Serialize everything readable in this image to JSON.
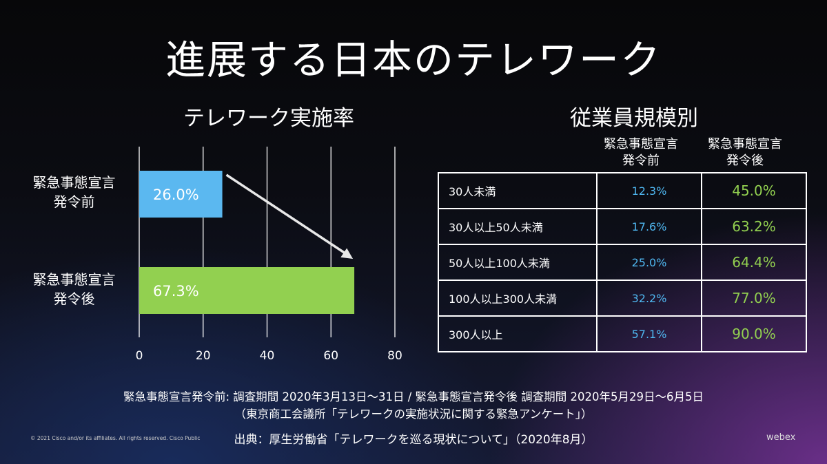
{
  "slide_title": "進展する日本のテレワーク",
  "chart_title": "テレワーク実施率",
  "table_title": "従業員規模別",
  "chart_data": {
    "type": "bar",
    "orientation": "horizontal",
    "title": "テレワーク実施率",
    "categories": [
      "緊急事態宣言\n発令前",
      "緊急事態宣言\n発令後"
    ],
    "values": [
      26.0,
      67.3
    ],
    "value_labels": [
      "26.0%",
      "67.3%"
    ],
    "xlim": [
      0,
      80
    ],
    "xticks": [
      0,
      20,
      40,
      60,
      80
    ],
    "grid": true,
    "colors": [
      "#5bb8f0",
      "#92d050"
    ],
    "annotation": "arrow from before-bar to after-bar"
  },
  "table": {
    "headers": [
      "",
      "緊急事態宣言\n発令前",
      "緊急事態宣言\n発令後"
    ],
    "rows": [
      [
        "30人未満",
        "12.3%",
        "45.0%"
      ],
      [
        "30人以上50人未満",
        "17.6%",
        "63.2%"
      ],
      [
        "50人以上100人未満",
        "25.0%",
        "64.4%"
      ],
      [
        "100人以上300人未満",
        "32.2%",
        "77.0%"
      ],
      [
        "300人以上",
        "57.1%",
        "90.0%"
      ]
    ],
    "colors": {
      "before": "#4fb7f0",
      "after": "#92d050"
    }
  },
  "notes": {
    "line1": "緊急事態宣言発令前: 調査期間 2020年3月13日～31日 / 緊急事態宣言発令後 調査期間 2020年5月29日～6月5日",
    "line2": "（東京商工会議所「テレワークの実施状況に関する緊急アンケート」）"
  },
  "source": "出典：厚生労働省「テレワークを巡る現状について」（2020年8月）",
  "copyright": "© 2021 Cisco and/or its affiliates. All rights reserved. Cisco Public",
  "brand": "webex"
}
